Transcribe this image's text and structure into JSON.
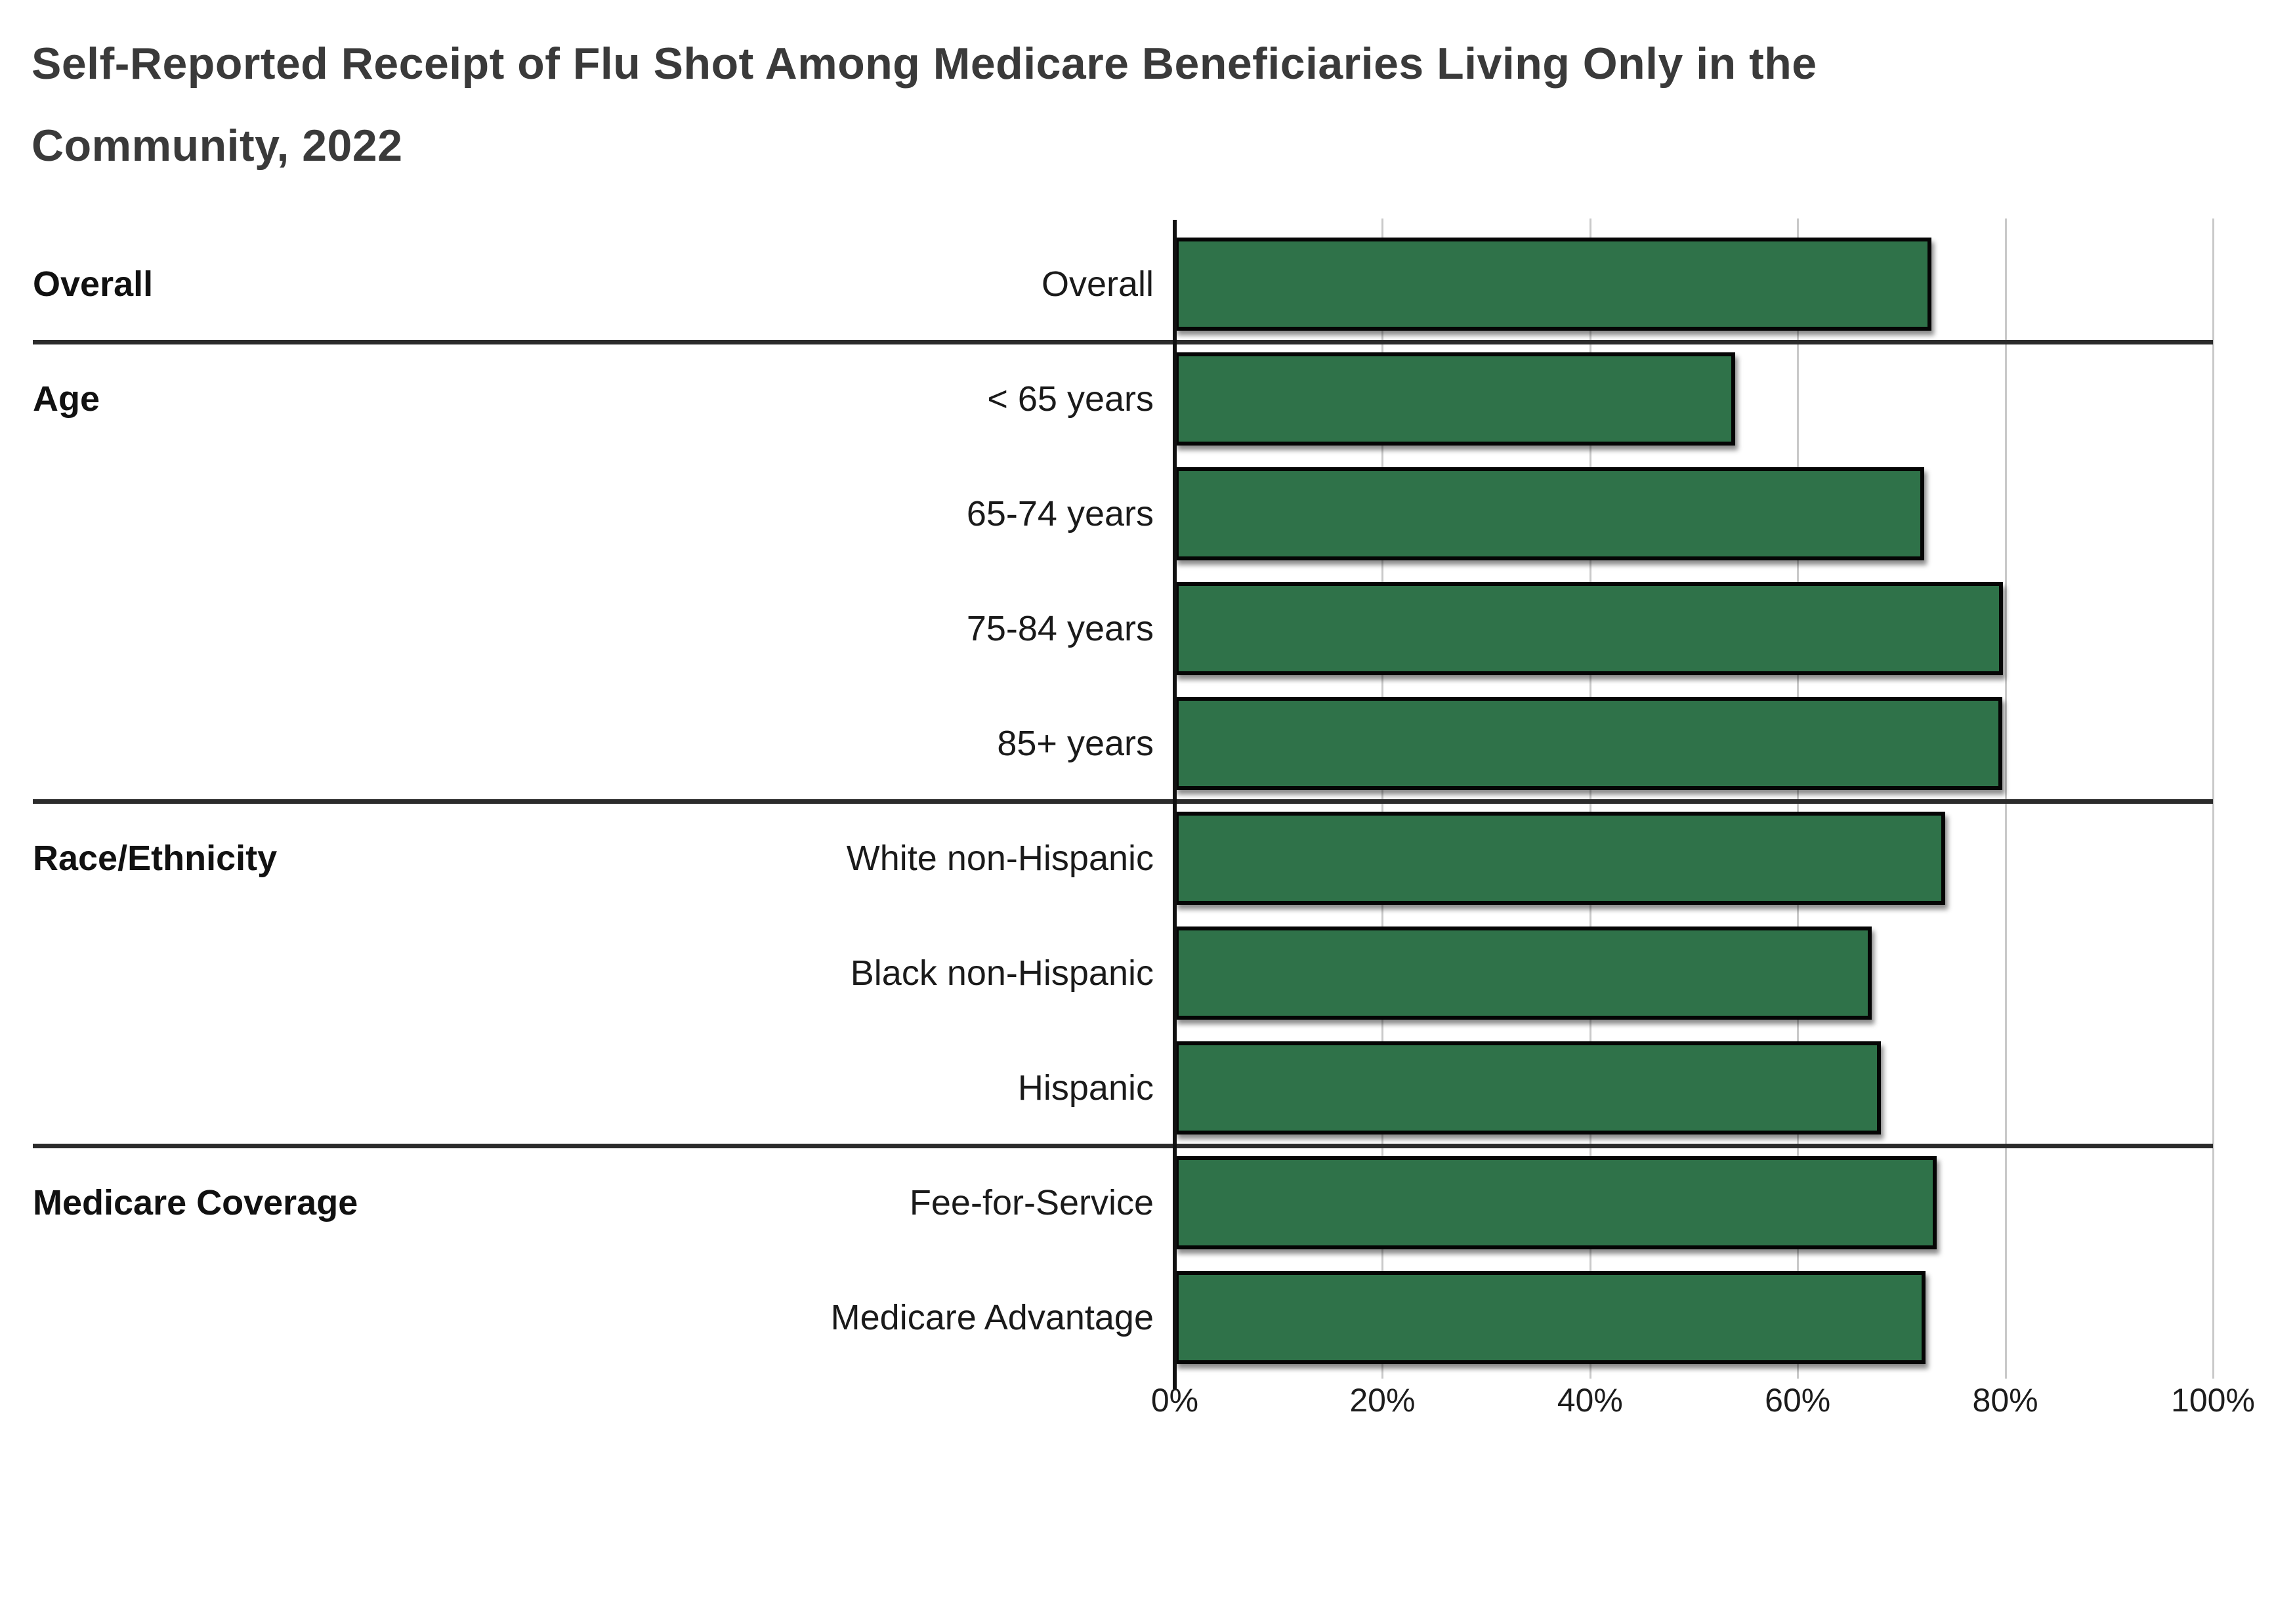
{
  "title": {
    "line1": "Self-Reported Receipt of Flu Shot Among Medicare Beneficiaries Living Only in the",
    "line2": "Community, 2022"
  },
  "chart_data": {
    "type": "bar",
    "orientation": "horizontal",
    "title": "Self-Reported Receipt of Flu Shot Among Medicare Beneficiaries Living Only in the Community, 2022",
    "value_unit": "percent",
    "xlim": [
      0,
      100
    ],
    "x_ticks": [
      "0%",
      "20%",
      "40%",
      "60%",
      "80%",
      "100%"
    ],
    "x_tick_values": [
      0,
      20,
      40,
      60,
      80,
      100
    ],
    "grid": true,
    "legend": "none",
    "bar_color": "#2f7249",
    "bar_border_color": "#050505",
    "groups": [
      {
        "label": "Overall",
        "rows": [
          {
            "label": "Overall",
            "value": 72.9
          }
        ]
      },
      {
        "label": "Age",
        "rows": [
          {
            "label": "< 65 years",
            "value": 54.0
          },
          {
            "label": "65-74 years",
            "value": 72.2
          },
          {
            "label": "75-84 years",
            "value": 79.8
          },
          {
            "label": "85+ years",
            "value": 79.7
          }
        ]
      },
      {
        "label": "Race/Ethnicity",
        "rows": [
          {
            "label": "White non-Hispanic",
            "value": 74.2
          },
          {
            "label": "Black non-Hispanic",
            "value": 67.1
          },
          {
            "label": "Hispanic",
            "value": 68.0
          }
        ]
      },
      {
        "label": "Medicare Coverage",
        "rows": [
          {
            "label": "Fee-for-Service",
            "value": 73.4
          },
          {
            "label": "Medicare Advantage",
            "value": 72.3
          }
        ]
      }
    ]
  }
}
